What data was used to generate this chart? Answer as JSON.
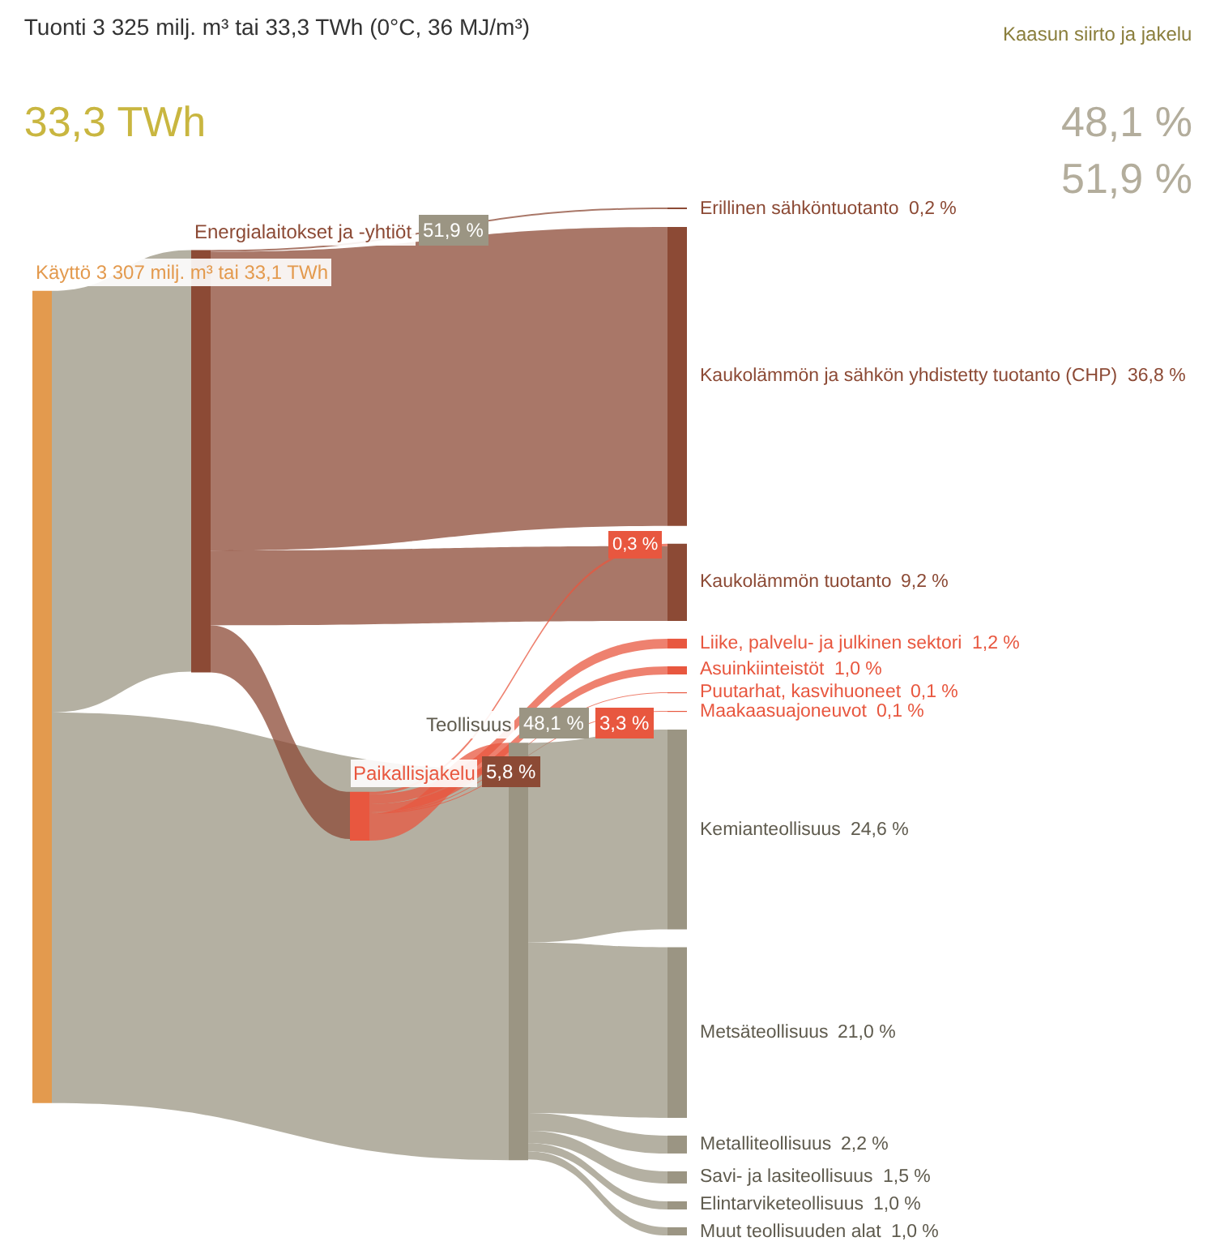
{
  "chart_data": {
    "type": "other",
    "title": "Tuonti 3 325 milj. m³ tai 33,3 TWh (0°C, 36 MJ/m³)",
    "subtitle": "33,3 TWh",
    "categories": [
      "Käyttö 3 307 milj. m³ tai 33,1 TWh",
      "Energialaitokset ja -yhtiöt",
      "Paikallisjakelu",
      "Teollisuus",
      "Erillinen sähköntuotanto",
      "Kaukolämmön ja sähkön yhdistetty tuotanto (CHP)",
      "Kaukolämmön tuotanto",
      "Liike, palvelu- ja julkinen sektori",
      "Asuinkiinteistöt",
      "Puutarhat, kasvihuoneet",
      "Maakaasuajoneuvot",
      "Kemianteollisuus",
      "Metsäteollisuus",
      "Metalliteollisuus",
      "Savi- ja lasiteollisuus",
      "Elintarviketeollisuus",
      "Muut teollisuuden alat"
    ],
    "colors": [
      "#e39a4e",
      "#8c4a35",
      "#e8573f",
      "#9b9583",
      "#8c4a35",
      "#8c4a35",
      "#8c4a35",
      "#e8573f",
      "#e8573f",
      "#e8573f",
      "#e8573f",
      "#9b9583",
      "#9b9583",
      "#9b9583",
      "#9b9583",
      "#9b9583",
      "#9b9583"
    ],
    "series": [
      {
        "color": "#9b9583",
        "values": [
          null,
          51.9,
          null,
          48.1,
          null,
          null,
          null,
          null,
          null,
          null,
          null,
          null,
          null,
          null,
          null,
          null,
          null
        ],
        "value_labels": [
          null,
          "51,9 %",
          null,
          "48,1 %",
          null,
          null,
          null,
          null,
          null,
          null,
          null,
          null,
          null,
          null,
          null,
          null,
          null
        ]
      },
      {
        "color": "#8c4a35",
        "values": [
          null,
          null,
          5.8,
          null,
          0.2,
          36.8,
          9.2,
          null,
          null,
          null,
          null,
          null,
          null,
          null,
          null,
          null,
          null
        ],
        "value_labels": [
          null,
          null,
          "5,8 %",
          null,
          "0,2 %",
          "36,8 %",
          "9,2 %",
          null,
          null,
          null,
          null,
          null,
          null,
          null,
          null,
          null,
          null
        ]
      },
      {
        "color": "#e8573f",
        "values": [
          null,
          null,
          null,
          3.3,
          null,
          null,
          0.3,
          1.2,
          1.0,
          0.1,
          0.1,
          null,
          null,
          null,
          null,
          null,
          null
        ],
        "value_labels": [
          null,
          null,
          null,
          "3,3 %",
          null,
          null,
          "0,3 %",
          "1,2 %",
          "1,0 %",
          "0,1 %",
          "0,1 %",
          null,
          null,
          null,
          null,
          null,
          null
        ]
      },
      {
        "color": "#9b9583",
        "values": [
          null,
          null,
          null,
          null,
          null,
          null,
          null,
          null,
          null,
          null,
          null,
          24.6,
          21.0,
          2.2,
          1.5,
          1.0,
          1.0
        ],
        "value_labels": [
          null,
          null,
          null,
          null,
          null,
          null,
          null,
          null,
          null,
          null,
          null,
          "24,6 %",
          "21,0 %",
          "2,2 %",
          "1,5 %",
          "1,0 %",
          "1,0 %"
        ]
      }
    ],
    "annotations": [
      "Kaasun siirto ja jakelu",
      "48,1 %",
      "51,9 %"
    ]
  }
}
